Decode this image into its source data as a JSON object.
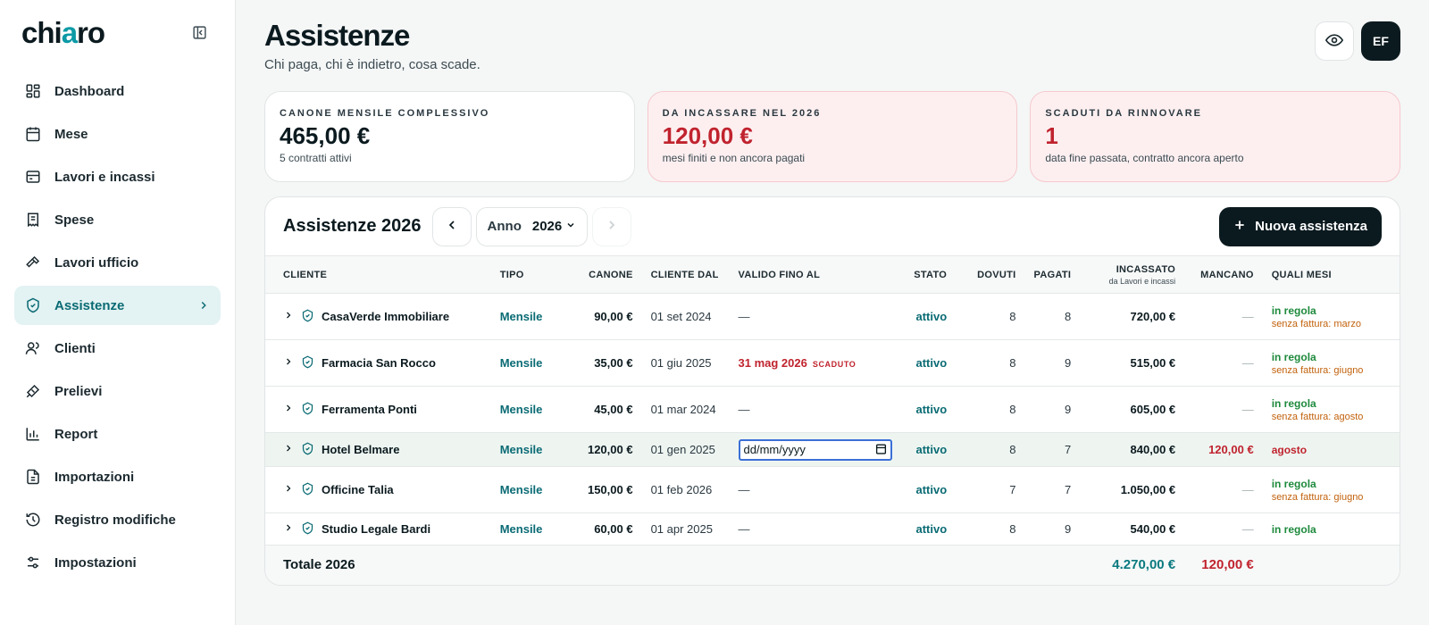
{
  "brand": {
    "logo_pre": "chi",
    "logo_mid": "a",
    "logo_post": "ro"
  },
  "sidebar": {
    "items": [
      {
        "label": "Dashboard"
      },
      {
        "label": "Mese"
      },
      {
        "label": "Lavori e incassi"
      },
      {
        "label": "Spese"
      },
      {
        "label": "Lavori ufficio"
      },
      {
        "label": "Assistenze"
      },
      {
        "label": "Clienti"
      },
      {
        "label": "Prelievi"
      },
      {
        "label": "Report"
      },
      {
        "label": "Importazioni"
      },
      {
        "label": "Registro modifiche"
      },
      {
        "label": "Impostazioni"
      }
    ]
  },
  "header": {
    "title": "Assistenze",
    "subtitle": "Chi paga, chi è indietro, cosa scade.",
    "avatar": "EF"
  },
  "kpis": [
    {
      "label": "CANONE MENSILE COMPLESSIVO",
      "value": "465,00 €",
      "note": "5 contratti attivi"
    },
    {
      "label": "DA INCASSARE NEL 2026",
      "value": "120,00 €",
      "note": "mesi finiti e non ancora pagati"
    },
    {
      "label": "SCADUTI DA RINNOVARE",
      "value": "1",
      "note": "data fine passata, contratto ancora aperto"
    }
  ],
  "panel": {
    "title": "Assistenze 2026",
    "year_label": "Anno",
    "year_value": "2026",
    "new_button": "Nuova assistenza"
  },
  "table": {
    "headers": {
      "cliente": "CLIENTE",
      "tipo": "TIPO",
      "canone": "CANONE",
      "cliente_dal": "CLIENTE DAL",
      "valido": "VALIDO FINO AL",
      "stato": "STATO",
      "dovuti": "DOVUTI",
      "pagati": "PAGATI",
      "incassato": "INCASSATO",
      "incassato_sub": "da Lavori e incassi",
      "mancano": "MANCANO",
      "mesi": "QUALI MESI"
    },
    "rows": [
      {
        "cliente": "CasaVerde Immobiliare",
        "tipo": "Mensile",
        "canone": "90,00 €",
        "dal": "01 set 2024",
        "valido": "—",
        "stato": "attivo",
        "dovuti": "8",
        "pagati": "8",
        "incassato": "720,00 €",
        "mancano": "—",
        "mesi": "in regola",
        "mesi_note": "senza fattura: marzo"
      },
      {
        "cliente": "Farmacia San Rocco",
        "tipo": "Mensile",
        "canone": "35,00 €",
        "dal": "01 giu 2025",
        "valido": "31 mag 2026",
        "valido_tag": "SCADUTO",
        "stato": "attivo",
        "dovuti": "8",
        "pagati": "9",
        "incassato": "515,00 €",
        "mancano": "—",
        "mesi": "in regola",
        "mesi_note": "senza fattura: giugno"
      },
      {
        "cliente": "Ferramenta Ponti",
        "tipo": "Mensile",
        "canone": "45,00 €",
        "dal": "01 mar 2024",
        "valido": "—",
        "stato": "attivo",
        "dovuti": "8",
        "pagati": "9",
        "incassato": "605,00 €",
        "mancano": "—",
        "mesi": "in regola",
        "mesi_note": "senza fattura: agosto"
      },
      {
        "cliente": "Hotel Belmare",
        "tipo": "Mensile",
        "canone": "120,00 €",
        "dal": "01 gen 2025",
        "valido_input": "dd/mm/yyyy",
        "stato": "attivo",
        "dovuti": "8",
        "pagati": "7",
        "incassato": "840,00 €",
        "mancano": "120,00 €",
        "mesi": "agosto"
      },
      {
        "cliente": "Officine Talia",
        "tipo": "Mensile",
        "canone": "150,00 €",
        "dal": "01 feb 2026",
        "valido": "—",
        "stato": "attivo",
        "dovuti": "7",
        "pagati": "7",
        "incassato": "1.050,00 €",
        "mancano": "—",
        "mesi": "in regola",
        "mesi_note": "senza fattura: giugno"
      },
      {
        "cliente": "Studio Legale Bardi",
        "tipo": "Mensile",
        "canone": "60,00 €",
        "dal": "01 apr 2025",
        "valido": "—",
        "stato": "attivo",
        "dovuti": "8",
        "pagati": "9",
        "incassato": "540,00 €",
        "mancano": "—",
        "mesi": "in regola"
      }
    ],
    "footer": {
      "label": "Totale 2026",
      "incassato": "4.270,00 €",
      "mancano": "120,00 €"
    }
  },
  "colors": {
    "accent": "#0a6b74",
    "danger": "#c0232e",
    "ok": "#1e8a3c",
    "warn": "#c2620d",
    "dark": "#0b1a1f"
  },
  "icons": [
    "sidebar-collapse-icon",
    "dashboard-icon",
    "calendar-icon",
    "wallet-icon",
    "receipt-icon",
    "hammer-icon",
    "shield-check-icon",
    "users-icon",
    "bandage-icon",
    "bar-chart-icon",
    "import-icon",
    "history-icon",
    "settings-icon",
    "eye-icon",
    "chevron-left-icon",
    "chevron-right-icon",
    "plus-icon",
    "calendar-picker-icon"
  ]
}
